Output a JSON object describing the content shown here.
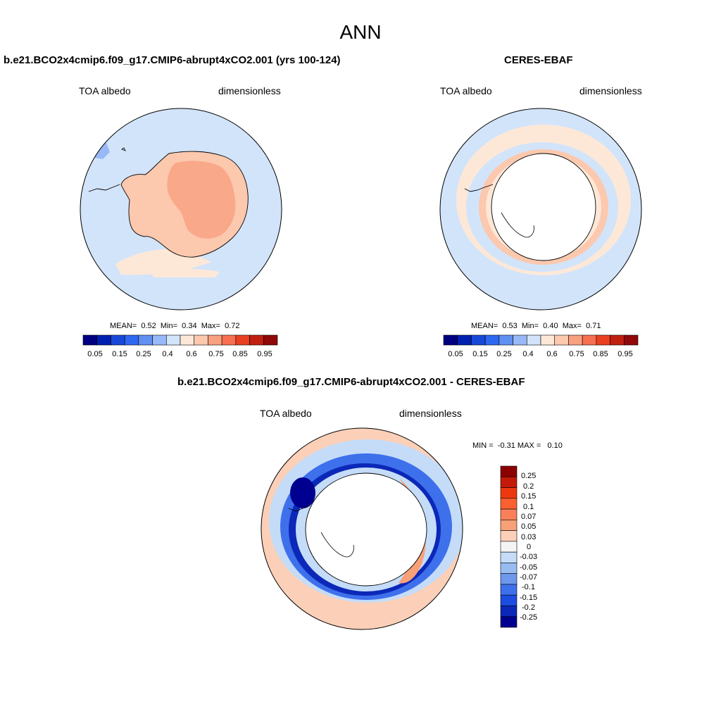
{
  "figure": {
    "title": "ANN",
    "units": "dimensionless"
  },
  "panels": [
    {
      "id": "model",
      "title": "b.e21.BCO2x4cmip6.f09_g17.CMIP6-abrupt4xCO2.001 (yrs 100-124)",
      "left_label": "TOA albedo",
      "right_label": "dimensionless",
      "stats": {
        "mean_label": "MEAN=",
        "mean": "0.52",
        "min_label": "Min=",
        "min": "0.34",
        "max_label": "Max=",
        "max": "0.72"
      }
    },
    {
      "id": "obs",
      "title": "CERES-EBAF",
      "left_label": "TOA albedo",
      "right_label": "dimensionless",
      "stats": {
        "mean_label": "MEAN=",
        "mean": "0.53",
        "min_label": "Min=",
        "min": "0.40",
        "max_label": "Max=",
        "max": "0.71"
      }
    },
    {
      "id": "diff",
      "title": "b.e21.BCO2x4cmip6.f09_g17.CMIP6-abrupt4xCO2.001 - CERES-EBAF",
      "left_label": "TOA albedo",
      "right_label": "dimensionless",
      "stats": {
        "min_label": "MIN =",
        "min": "-0.31",
        "max_label": "MAX =",
        "max": "0.10"
      }
    }
  ],
  "colorbars": {
    "absolute": {
      "colors": [
        "#000080",
        "#0020b0",
        "#1848d8",
        "#2e68f0",
        "#6090f0",
        "#98b8f8",
        "#d2e4fa",
        "#fde8d8",
        "#fcc8ae",
        "#f9a080",
        "#f77050",
        "#e84020",
        "#c02010",
        "#900808"
      ],
      "tick_labels": [
        "0.05",
        "0.15",
        "0.25",
        "0.4",
        "0.6",
        "0.75",
        "0.85",
        "0.95"
      ]
    },
    "difference": {
      "colors": [
        "#8b0000",
        "#c41a0a",
        "#f03810",
        "#fb6030",
        "#f88058",
        "#f8a078",
        "#fcd0b8",
        "#f4f4f4",
        "#c4dcf8",
        "#98bcf2",
        "#6e98ee",
        "#3e70ec",
        "#1c4ce0",
        "#0c28b8",
        "#000090"
      ],
      "tick_labels": [
        "0.25",
        "0.2",
        "0.15",
        "0.1",
        "0.07",
        "0.05",
        "0.03",
        "0",
        "-0.03",
        "-0.05",
        "-0.07",
        "-0.1",
        "-0.15",
        "-0.2",
        "-0.25"
      ]
    }
  }
}
